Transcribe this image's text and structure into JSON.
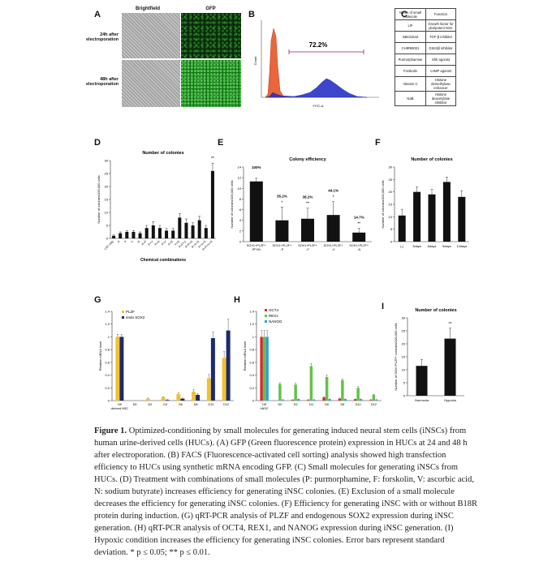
{
  "panels": {
    "A": {
      "label": "A",
      "col_brightfield": "Brightfield",
      "col_gfp": "GFP",
      "row1": "24h after electroporation",
      "row2": "48h after electroporation"
    },
    "B": {
      "label": "B",
      "percent": "72.2%",
      "xlabel": "FITC-A",
      "ylabel": "Count"
    },
    "C": {
      "label": "C",
      "headers": [
        "Name of small molecule",
        "Function"
      ],
      "rows": [
        [
          "LIF",
          "Growth factor for pluripotent NSC"
        ],
        [
          "SB431542",
          "TGF-β inhibitor"
        ],
        [
          "CHIR99021",
          "GSK3β inhibitor"
        ],
        [
          "Purmorphamine",
          "Shh agonist"
        ],
        [
          "Forskolin",
          "cAMP agonist"
        ],
        [
          "Vitamin C",
          "Histone demethylase enhancer"
        ],
        [
          "NaB",
          "Histone deacetylase inhibitor"
        ]
      ]
    },
    "D": {
      "label": "D",
      "title": "Number of colonies",
      "xlabel": "Chemical combinations",
      "ylabel": "Number of colonies/100,000 cells"
    },
    "E": {
      "label": "E",
      "title": "Colony efficiency",
      "ylabel": "Number of colonies/100,000 cells"
    },
    "F": {
      "label": "F",
      "title": "Number of colonies",
      "xlabel": "B18R treatment after induction",
      "ylabel": "Number of colonies/100,000 cells"
    },
    "G": {
      "label": "G",
      "ylabel": "Relative mRNA level"
    },
    "H": {
      "label": "H",
      "ylabel": "Relative mRNA level"
    },
    "I": {
      "label": "I",
      "title": "Number of colonies",
      "ylabel": "Number of SOX+PLZF+ colonies/100,000 cells"
    }
  },
  "chart_data": [
    {
      "id": "D",
      "type": "bar",
      "title": "Number of colonies",
      "xlabel": "Chemical combinations",
      "ylabel": "Number of colonies/100,000 cells",
      "ylim": [
        0,
        30
      ],
      "yticks": [
        0,
        5,
        10,
        15,
        20,
        25,
        30
      ],
      "categories": [
        "LSC only",
        "P",
        "F",
        "V",
        "N",
        "P+F",
        "P+V",
        "P+N",
        "F+V",
        "F+N",
        "V+N",
        "P+F+V",
        "P+F+N",
        "P+V+N",
        "F+V+N",
        "P+F+V+N"
      ],
      "values": [
        1,
        2,
        2.5,
        2.5,
        2,
        4,
        5,
        4,
        3,
        3,
        8,
        6,
        5,
        7,
        4,
        26
      ],
      "errors": [
        0.3,
        0.5,
        0.5,
        0.5,
        0.5,
        1,
        1.5,
        1,
        0.8,
        0.8,
        1.5,
        1.5,
        1,
        1.5,
        1,
        3
      ],
      "sig": [
        "",
        "",
        "",
        "",
        "",
        "",
        "",
        "",
        "",
        "",
        "",
        "",
        "",
        "",
        "",
        "**"
      ]
    },
    {
      "id": "E",
      "type": "bar",
      "title": "Colony efficiency",
      "ylabel": "Number of colonies/100,000 cells",
      "ylim": [
        0,
        14
      ],
      "yticks": [
        0,
        2,
        4,
        6,
        8,
        10,
        12,
        14
      ],
      "categories": [
        "SOX1+PLZF+ PFVN",
        "SOX1+PLZF+ -P",
        "SOX1+PLZF+ -F",
        "SOX1+PLZF+ -V",
        "SOX1+PLZF+ -N"
      ],
      "values": [
        11.3,
        4.0,
        4.3,
        5.0,
        1.7
      ],
      "errors": [
        0.6,
        2.5,
        2.0,
        2.5,
        0.8
      ],
      "pct": [
        "100%",
        "35.2%",
        "38.2%",
        "44.1%",
        "14.7%"
      ],
      "sig": [
        "",
        "*",
        "**",
        "*",
        "**"
      ]
    },
    {
      "id": "F",
      "type": "bar",
      "title": "Number of colonies",
      "xlabel": "B18R treatment after induction",
      "ylabel": "Number of colonies/100,000 cells",
      "ylim": [
        0,
        30
      ],
      "yticks": [
        0,
        5,
        10,
        15,
        20,
        25,
        30
      ],
      "categories": [
        "(-)",
        "3days",
        "6days",
        "9days",
        "12days"
      ],
      "values": [
        10.5,
        20,
        19,
        24,
        18
      ],
      "errors": [
        2.5,
        2,
        2,
        2,
        2.5
      ]
    },
    {
      "id": "G",
      "type": "bar",
      "ylabel": "Relative mRNA level",
      "ylim": [
        0,
        1.4
      ],
      "yticks": [
        0,
        0.2,
        0.4,
        0.6,
        0.8,
        1,
        1.2,
        1.4
      ],
      "categories": [
        "H9 derived NSC",
        "D0",
        "D2",
        "D4",
        "D6",
        "D8",
        "D10",
        "D12"
      ],
      "series": [
        {
          "name": "PLZF",
          "color": "#f2c12e",
          "values": [
            1.0,
            0.0,
            0.03,
            0.05,
            0.1,
            0.14,
            0.35,
            0.67
          ],
          "errors": [
            0.04,
            0,
            0.01,
            0.01,
            0.02,
            0.03,
            0.06,
            0.1
          ]
        },
        {
          "name": "endo SOX2",
          "color": "#1c2a6e",
          "values": [
            1.0,
            0.0,
            0.0,
            0.01,
            0.03,
            0.09,
            0.98,
            1.1
          ],
          "errors": [
            0.04,
            0,
            0,
            0.005,
            0.01,
            0.02,
            0.1,
            0.18
          ]
        }
      ]
    },
    {
      "id": "H",
      "type": "bar",
      "ylabel": "Relative mRNA level",
      "ylim": [
        0,
        1.4
      ],
      "yticks": [
        0,
        0.2,
        0.4,
        0.6,
        0.8,
        1,
        1.2,
        1.4
      ],
      "categories": [
        "H9 hNSC",
        "D0",
        "D2",
        "D4",
        "D6",
        "D8",
        "D10",
        "D12"
      ],
      "series": [
        {
          "name": "OCT4",
          "color": "#d62a2a",
          "values": [
            1.0,
            0.0,
            0.01,
            0.01,
            0.05,
            0.03,
            0.02,
            0.01
          ],
          "errors": [
            0.1,
            0,
            0.005,
            0.005,
            0.01,
            0.01,
            0.005,
            0.005
          ]
        },
        {
          "name": "REX1",
          "color": "#63c24a",
          "values": [
            1.0,
            0.26,
            0.25,
            0.54,
            0.37,
            0.32,
            0.2,
            0.09
          ],
          "errors": [
            0.1,
            0.02,
            0.02,
            0.04,
            0.03,
            0.02,
            0.02,
            0.01
          ]
        },
        {
          "name": "NANOG",
          "color": "#2b9fd6",
          "values": [
            1.0,
            0.01,
            0.02,
            0.01,
            0.02,
            0.02,
            0.02,
            0.01
          ],
          "errors": [
            0.1,
            0.005,
            0.005,
            0.005,
            0.005,
            0.005,
            0.005,
            0.005
          ]
        }
      ]
    },
    {
      "id": "I",
      "type": "bar",
      "title": "Number of colonies",
      "ylabel": "Number of SOX+PLZF+ colonies/100,000 cells",
      "ylim": [
        0,
        30
      ],
      "yticks": [
        0,
        5,
        10,
        15,
        20,
        25,
        30
      ],
      "categories": [
        "Normoxia",
        "Hypoxia"
      ],
      "values": [
        11.5,
        22
      ],
      "errors": [
        2.5,
        4
      ],
      "sig": [
        "",
        "**"
      ]
    }
  ],
  "caption": {
    "lead": "Figure 1.",
    "text": " Optimized-conditioning by small molecules for generating induced neural stem cells (iNSCs) from human urine-derived cells (HUCs). (A) GFP (Green fluorescence protein) expression in HUCs at 24 and 48 h after electroporation. (B) FACS (Fluorescence-activated cell sorting) analysis showed high transfection efficiency to HUCs using synthetic mRNA encoding GFP. (C) Small molecules for generating iNSCs from HUCs. (D) Treatment with combinations of small molecules (P: purmorphamine, F: forskolin, V: ascorbic acid, N: sodium butyrate) increases efficiency for generating iNSC colonies. (E) Exclusion of a small molecule decreases the efficiency for generating iNSC colonies. (F) Efficiency for generating iNSC with or without B18R protein during induction. (G) qRT-PCR analysis of PLZF and endogenous SOX2 expression during iNSC generation. (H) qRT-PCR analysis of OCT4, REX1, and NANOG expression during iNSC generation. (I) Hypoxic condition increases the efficiency for generating iNSC colonies. Error bars represent standard deviation. * p ≤ 0.05; ** p ≤ 0.01."
  }
}
